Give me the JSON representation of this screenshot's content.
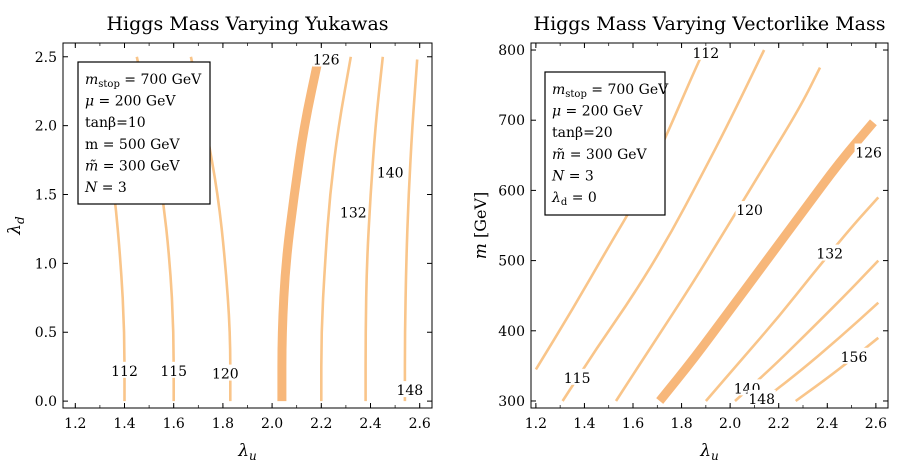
{
  "chart_data": [
    {
      "type": "contour",
      "title": "Higgs Mass Varying Yukawas",
      "xlabel": "λ",
      "xlabel_sub": "u",
      "ylabel": "λ",
      "ylabel_sub": "d",
      "xlim": [
        1.15,
        2.65
      ],
      "ylim": [
        -0.05,
        2.6
      ],
      "xticks": [
        1.2,
        1.4,
        1.6,
        1.8,
        2.0,
        2.2,
        2.4,
        2.6
      ],
      "xtick_labels": [
        "1.2",
        "1.4",
        "1.6",
        "1.8",
        "2.0",
        "2.2",
        "2.4",
        "2.6"
      ],
      "yticks": [
        0.0,
        0.5,
        1.0,
        1.5,
        2.0,
        2.5
      ],
      "ytick_labels": [
        "0.0",
        "0.5",
        "1.0",
        "1.5",
        "2.0",
        "2.5"
      ],
      "contours": [
        {
          "level": "112",
          "highlight": false,
          "points": [
            [
              1.4,
              0.0
            ],
            [
              1.4,
              0.5
            ],
            [
              1.385,
              1.0
            ],
            [
              1.36,
              1.5
            ],
            [
              1.32,
              2.0
            ],
            [
              1.27,
              2.42
            ]
          ]
        },
        {
          "level": "115",
          "highlight": false,
          "points": [
            [
              1.6,
              0.0
            ],
            [
              1.6,
              0.5
            ],
            [
              1.585,
              1.0
            ],
            [
              1.555,
              1.5
            ],
            [
              1.51,
              2.0
            ],
            [
              1.45,
              2.5
            ]
          ]
        },
        {
          "level": "120",
          "highlight": false,
          "points": [
            [
              1.83,
              0.0
            ],
            [
              1.83,
              0.5
            ],
            [
              1.81,
              1.0
            ],
            [
              1.78,
              1.5
            ],
            [
              1.73,
              2.0
            ],
            [
              1.67,
              2.5
            ]
          ]
        },
        {
          "level": "126",
          "highlight": true,
          "points": [
            [
              2.04,
              0.0
            ],
            [
              2.04,
              0.5
            ],
            [
              2.055,
              1.0
            ],
            [
              2.09,
              1.5
            ],
            [
              2.13,
              2.0
            ],
            [
              2.19,
              2.5
            ]
          ]
        },
        {
          "level": "",
          "highlight": false,
          "points": [
            [
              2.2,
              0.0
            ],
            [
              2.2,
              0.5
            ],
            [
              2.215,
              1.0
            ],
            [
              2.235,
              1.5
            ],
            [
              2.27,
              2.0
            ],
            [
              2.32,
              2.5
            ]
          ]
        },
        {
          "level": "132",
          "highlight": false,
          "points": [
            [
              2.38,
              0.0
            ],
            [
              2.38,
              0.5
            ],
            [
              2.385,
              1.0
            ],
            [
              2.4,
              1.5
            ],
            [
              2.42,
              2.0
            ],
            [
              2.45,
              2.5
            ]
          ]
        },
        {
          "level": "140",
          "highlight": false,
          "points": [
            [
              2.54,
              0.0
            ],
            [
              2.54,
              0.5
            ],
            [
              2.545,
              1.0
            ],
            [
              2.555,
              1.5
            ],
            [
              2.57,
              2.0
            ],
            [
              2.59,
              2.48
            ]
          ]
        }
      ],
      "contour_labels": [
        {
          "text": "112",
          "x": 1.4,
          "y": 0.22
        },
        {
          "text": "115",
          "x": 1.6,
          "y": 0.22
        },
        {
          "text": "120",
          "x": 1.81,
          "y": 0.2
        },
        {
          "text": "126",
          "x": 2.22,
          "y": 2.48
        },
        {
          "text": "132",
          "x": 2.33,
          "y": 1.37
        },
        {
          "text": "140",
          "x": 2.48,
          "y": 1.66
        },
        {
          "text": "148",
          "x": 2.56,
          "y": 0.08
        }
      ],
      "legend": {
        "position": "top-left",
        "lines": [
          {
            "var": "m",
            "sub": "stop",
            "rest": " = 700 GeV"
          },
          {
            "var": "μ",
            "sub": "",
            "rest": " = 200 GeV"
          },
          {
            "var": "",
            "sub": "",
            "rest": "tanβ=10"
          },
          {
            "var": "",
            "sub": "",
            "rest": "m  = 500 GeV"
          },
          {
            "var": "m̃",
            "sub": "",
            "rest": " = 300 GeV"
          },
          {
            "var": "N",
            "sub": "",
            "rest": " = 3"
          }
        ]
      }
    },
    {
      "type": "contour",
      "title": "Higgs Mass Varying Vectorlike Mass",
      "xlabel": "λ",
      "xlabel_sub": "u",
      "ylabel": "m",
      "ylabel_unit": " [GeV]",
      "xlim": [
        1.18,
        2.65
      ],
      "ylim": [
        290,
        810
      ],
      "xticks": [
        1.2,
        1.4,
        1.6,
        1.8,
        2.0,
        2.2,
        2.4,
        2.6
      ],
      "xtick_labels": [
        "1.2",
        "1.4",
        "1.6",
        "1.8",
        "2.0",
        "2.2",
        "2.4",
        "2.6"
      ],
      "yticks": [
        300,
        400,
        500,
        600,
        700,
        800
      ],
      "ytick_labels": [
        "300",
        "400",
        "500",
        "600",
        "700",
        "800"
      ],
      "contours": [
        {
          "level": "115",
          "highlight": false,
          "points": [
            [
              1.2,
              345
            ],
            [
              1.35,
              430
            ],
            [
              1.5,
              520
            ],
            [
              1.62,
              590
            ],
            [
              1.74,
              680
            ],
            [
              1.84,
              760
            ],
            [
              1.9,
              806
            ]
          ]
        },
        {
          "level": "",
          "highlight": false,
          "points": [
            [
              1.31,
              300
            ],
            [
              1.45,
              375
            ],
            [
              1.6,
              450
            ],
            [
              1.75,
              535
            ],
            [
              1.88,
              620
            ],
            [
              2.0,
              700
            ],
            [
              2.14,
              800
            ]
          ]
        },
        {
          "level": "120",
          "highlight": false,
          "points": [
            [
              1.53,
              300
            ],
            [
              1.68,
              380
            ],
            [
              1.85,
              470
            ],
            [
              2.0,
              555
            ],
            [
              2.15,
              640
            ],
            [
              2.29,
              720
            ],
            [
              2.37,
              775
            ]
          ]
        },
        {
          "level": "126",
          "highlight": true,
          "points": [
            [
              1.71,
              300
            ],
            [
              1.85,
              360
            ],
            [
              2.0,
              430
            ],
            [
              2.15,
              500
            ],
            [
              2.3,
              570
            ],
            [
              2.45,
              640
            ],
            [
              2.59,
              697
            ]
          ]
        },
        {
          "level": "132",
          "highlight": false,
          "points": [
            [
              1.9,
              300
            ],
            [
              2.05,
              360
            ],
            [
              2.2,
              420
            ],
            [
              2.35,
              485
            ],
            [
              2.5,
              548
            ],
            [
              2.61,
              590
            ]
          ]
        },
        {
          "level": "140",
          "highlight": false,
          "points": [
            [
              2.02,
              300
            ],
            [
              2.18,
              350
            ],
            [
              2.35,
              408
            ],
            [
              2.5,
              460
            ],
            [
              2.61,
              500
            ]
          ]
        },
        {
          "level": "148",
          "highlight": false,
          "points": [
            [
              2.13,
              300
            ],
            [
              2.28,
              340
            ],
            [
              2.45,
              390
            ],
            [
              2.61,
              440
            ]
          ]
        },
        {
          "level": "156",
          "highlight": false,
          "points": [
            [
              2.27,
              300
            ],
            [
              2.43,
              340
            ],
            [
              2.61,
              390
            ]
          ]
        }
      ],
      "contour_labels": [
        {
          "text": "112",
          "x": 1.9,
          "y": 796
        },
        {
          "text": "115",
          "x": 1.37,
          "y": 333
        },
        {
          "text": "120",
          "x": 2.08,
          "y": 572
        },
        {
          "text": "126",
          "x": 2.57,
          "y": 654
        },
        {
          "text": "132",
          "x": 2.41,
          "y": 510
        },
        {
          "text": "140",
          "x": 2.07,
          "y": 318
        },
        {
          "text": "148",
          "x": 2.13,
          "y": 303
        },
        {
          "text": "156",
          "x": 2.51,
          "y": 363
        }
      ],
      "legend": {
        "position": "top-left",
        "lines": [
          {
            "var": "m",
            "sub": "stop",
            "rest": " = 700 GeV"
          },
          {
            "var": "μ",
            "sub": "",
            "rest": " = 200 GeV"
          },
          {
            "var": "",
            "sub": "",
            "rest": "tanβ=20"
          },
          {
            "var": "m̃",
            "sub": "",
            "rest": " = 300 GeV"
          },
          {
            "var": "N",
            "sub": "",
            "rest": " = 3"
          },
          {
            "var": "λ",
            "sub": "d",
            "rest": " = 0"
          }
        ]
      }
    }
  ],
  "style": {
    "contour_color": "#f9c58a",
    "highlight_color": "#f7b77a",
    "frame_color": "#000000"
  }
}
